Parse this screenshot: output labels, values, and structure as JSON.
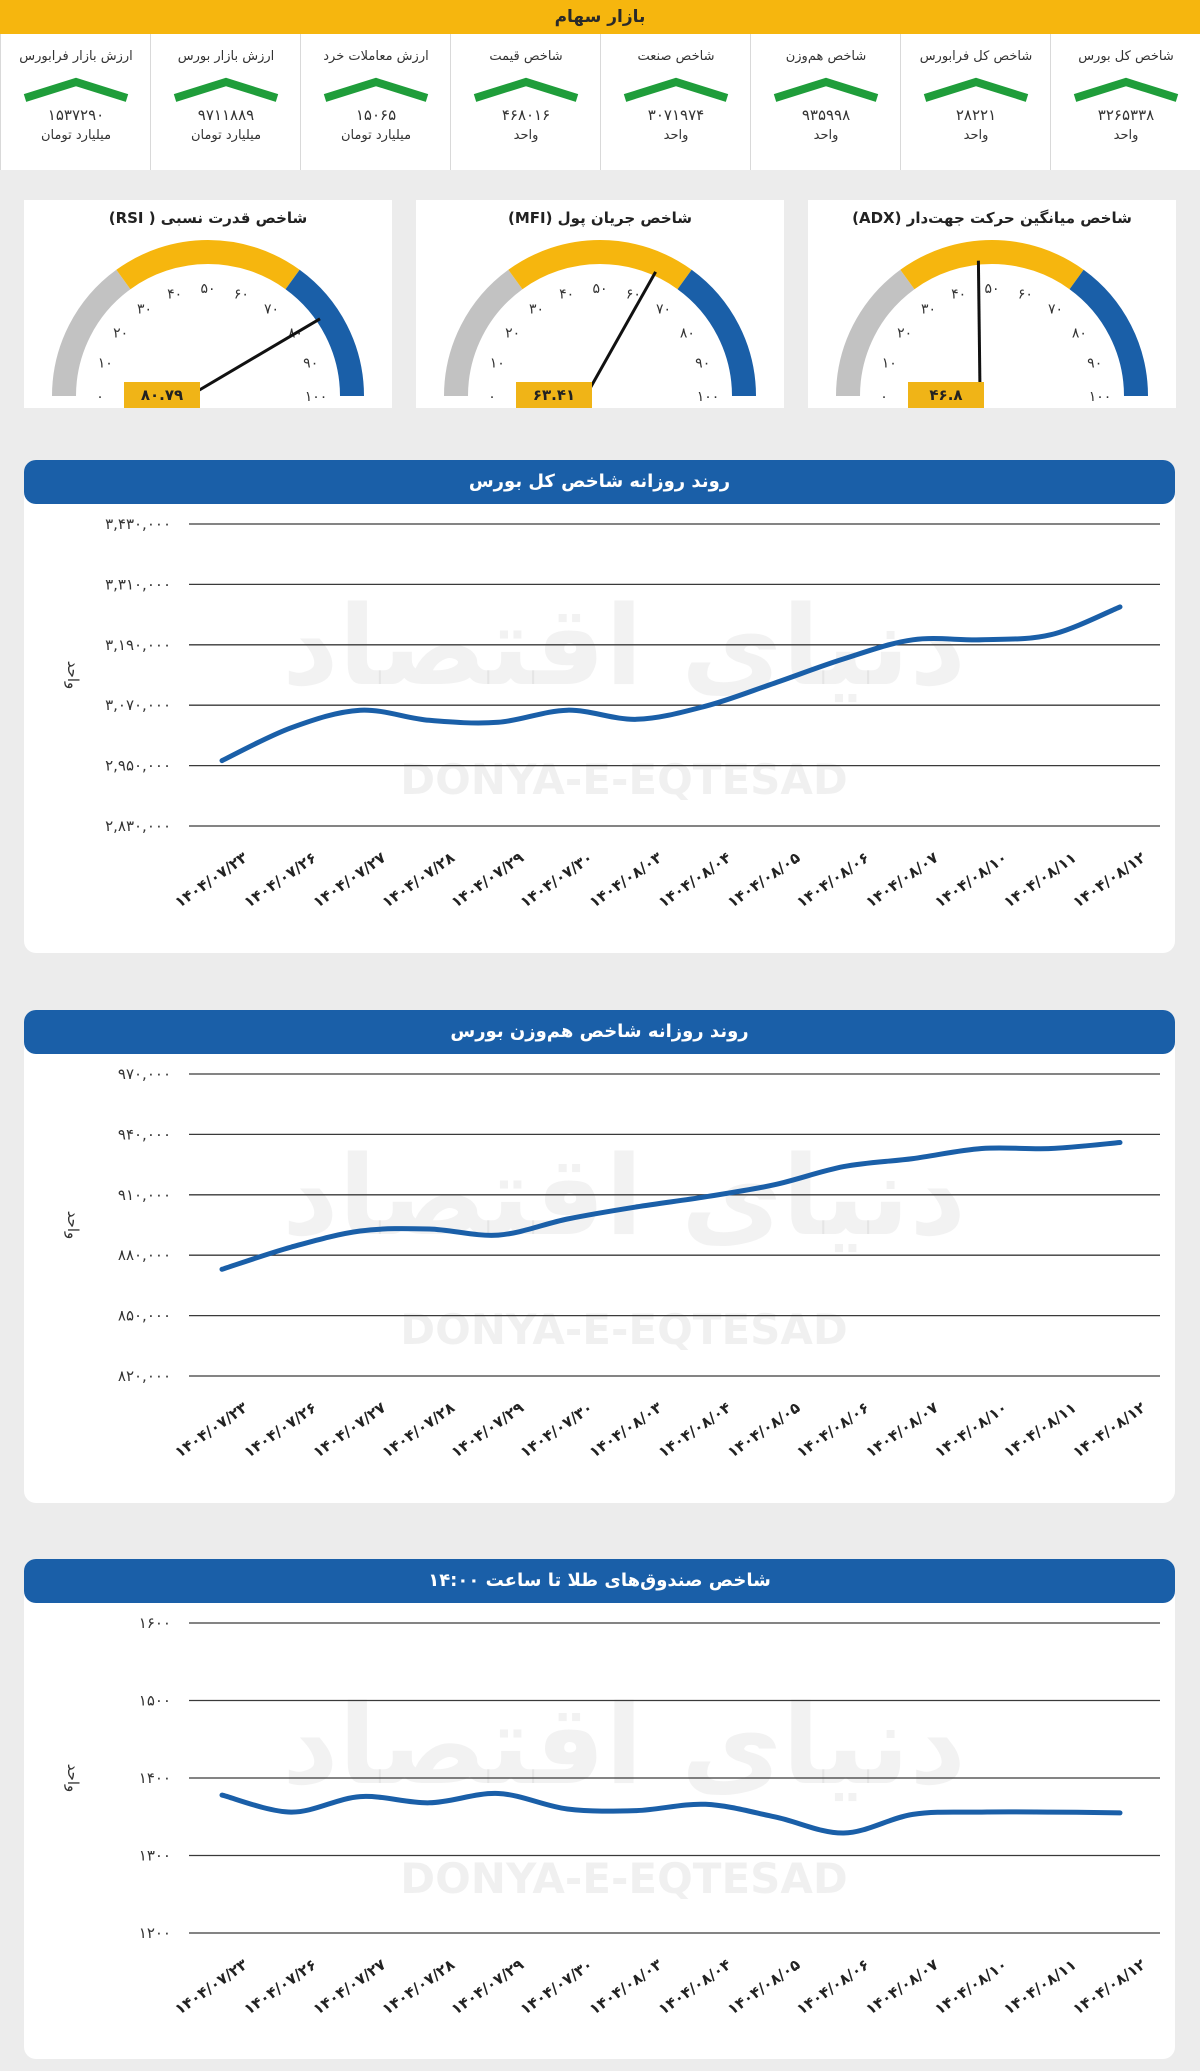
{
  "header": {
    "title": "بازار سهام"
  },
  "metrics": [
    {
      "title": "شاخص کل بورس",
      "value": "۳۲۶۵۳۳۸",
      "unit": "واحد"
    },
    {
      "title": "شاخص کل فرابورس",
      "value": "۲۸۲۲۱",
      "unit": "واحد"
    },
    {
      "title": "شاخص هم‌وزن",
      "value": "۹۳۵۹۹۸",
      "unit": "واحد"
    },
    {
      "title": "شاخص صنعت",
      "value": "۳۰۷۱۹۷۴",
      "unit": "واحد"
    },
    {
      "title": "شاخص قیمت",
      "value": "۴۶۸۰۱۶",
      "unit": "واحد"
    },
    {
      "title": "ارزش معاملات خرد",
      "value": "۱۵۰۶۵",
      "unit": "میلیارد تومان"
    },
    {
      "title": "ارزش بازار بورس",
      "value": "۹۷۱۱۸۸۹",
      "unit": "میلیارد تومان"
    },
    {
      "title": "ارزش بازار فرابورس",
      "value": "۱۵۳۷۲۹۰",
      "unit": "میلیارد تومان"
    }
  ],
  "colors": {
    "accent": "#f6b60e",
    "blue": "#1a5fa8",
    "grey": "#c2c2c2",
    "trend_up": "#1f9d3a"
  },
  "gauges": [
    {
      "id": "adx",
      "title": "شاخص میانگین حرکت جهت‌دار (ADX)",
      "value": 46.8,
      "value_label": "۴۶.۸"
    },
    {
      "id": "mfi",
      "title": "شاخص جریان پول (MFI)",
      "value": 63.41,
      "value_label": "۶۳.۴۱"
    },
    {
      "id": "rsi",
      "title": "شاخص قدرت نسبی ( RSI)",
      "value": 80.79,
      "value_label": "۸۰.۷۹"
    }
  ],
  "gauge_ticks": [
    "۰",
    "۱۰",
    "۲۰",
    "۳۰",
    "۴۰",
    "۵۰",
    "۶۰",
    "۷۰",
    "۸۰",
    "۹۰",
    "۱۰۰"
  ],
  "watermark": {
    "fa": "دنیای اقتصاد",
    "en": "DONYA-E-EQTESAD"
  },
  "chart_data": [
    {
      "type": "line",
      "title": "روند روزانه شاخص کل بورس",
      "ylabel": "واحد",
      "categories": [
        "۱۴۰۴/۰۷/۲۳",
        "۱۴۰۴/۰۷/۲۶",
        "۱۴۰۴/۰۷/۲۷",
        "۱۴۰۴/۰۷/۲۸",
        "۱۴۰۴/۰۷/۲۹",
        "۱۴۰۴/۰۷/۳۰",
        "۱۴۰۴/۰۸/۰۳",
        "۱۴۰۴/۰۸/۰۴",
        "۱۴۰۴/۰۸/۰۵",
        "۱۴۰۴/۰۸/۰۶",
        "۱۴۰۴/۰۸/۰۷",
        "۱۴۰۴/۰۸/۱۰",
        "۱۴۰۴/۰۸/۱۱",
        "۱۴۰۴/۰۸/۱۲"
      ],
      "values": [
        2960000,
        3025000,
        3060000,
        3040000,
        3036000,
        3060000,
        3042000,
        3068000,
        3114000,
        3162000,
        3200000,
        3200000,
        3210000,
        3265338
      ],
      "ylim": [
        2830000,
        3430000
      ],
      "yticks": [
        2830000,
        2950000,
        3070000,
        3190000,
        3310000,
        3430000
      ],
      "ytick_labels": [
        "۲,۸۳۰,۰۰۰",
        "۲,۹۵۰,۰۰۰",
        "۳,۰۷۰,۰۰۰",
        "۳,۱۹۰,۰۰۰",
        "۳,۳۱۰,۰۰۰",
        "۳,۴۳۰,۰۰۰"
      ]
    },
    {
      "type": "line",
      "title": "روند روزانه شاخص هم‌وزن بورس",
      "ylabel": "واحد",
      "categories": [
        "۱۴۰۴/۰۷/۲۳",
        "۱۴۰۴/۰۷/۲۶",
        "۱۴۰۴/۰۷/۲۷",
        "۱۴۰۴/۰۷/۲۸",
        "۱۴۰۴/۰۷/۲۹",
        "۱۴۰۴/۰۷/۳۰",
        "۱۴۰۴/۰۸/۰۳",
        "۱۴۰۴/۰۸/۰۴",
        "۱۴۰۴/۰۸/۰۵",
        "۱۴۰۴/۰۸/۰۶",
        "۱۴۰۴/۰۸/۰۷",
        "۱۴۰۴/۰۸/۱۰",
        "۱۴۰۴/۰۸/۱۱",
        "۱۴۰۴/۰۸/۱۲"
      ],
      "values": [
        873000,
        884000,
        892000,
        893000,
        890000,
        898000,
        904000,
        909000,
        915000,
        924000,
        928000,
        933000,
        933000,
        935998
      ],
      "ylim": [
        820000,
        970000
      ],
      "yticks": [
        820000,
        850000,
        880000,
        910000,
        940000,
        970000
      ],
      "ytick_labels": [
        "۸۲۰,۰۰۰",
        "۸۵۰,۰۰۰",
        "۸۸۰,۰۰۰",
        "۹۱۰,۰۰۰",
        "۹۴۰,۰۰۰",
        "۹۷۰,۰۰۰"
      ]
    },
    {
      "type": "line",
      "title": "شاخص صندوق‌های طلا تا ساعت ۱۴:۰۰",
      "ylabel": "واحد",
      "categories": [
        "۱۴۰۴/۰۷/۲۳",
        "۱۴۰۴/۰۷/۲۶",
        "۱۴۰۴/۰۷/۲۷",
        "۱۴۰۴/۰۷/۲۸",
        "۱۴۰۴/۰۷/۲۹",
        "۱۴۰۴/۰۷/۳۰",
        "۱۴۰۴/۰۸/۰۳",
        "۱۴۰۴/۰۸/۰۴",
        "۱۴۰۴/۰۸/۰۵",
        "۱۴۰۴/۰۸/۰۶",
        "۱۴۰۴/۰۸/۰۷",
        "۱۴۰۴/۰۸/۱۰",
        "۱۴۰۴/۰۸/۱۱",
        "۱۴۰۴/۰۸/۱۲"
      ],
      "values": [
        1378,
        1356,
        1376,
        1368,
        1380,
        1360,
        1358,
        1366,
        1350,
        1329,
        1353,
        1356,
        1356,
        1355
      ],
      "ylim": [
        1200,
        1600
      ],
      "yticks": [
        1200,
        1300,
        1400,
        1500,
        1600
      ],
      "ytick_labels": [
        "۱۲۰۰",
        "۱۳۰۰",
        "۱۴۰۰",
        "۱۵۰۰",
        "۱۶۰۰"
      ]
    }
  ]
}
